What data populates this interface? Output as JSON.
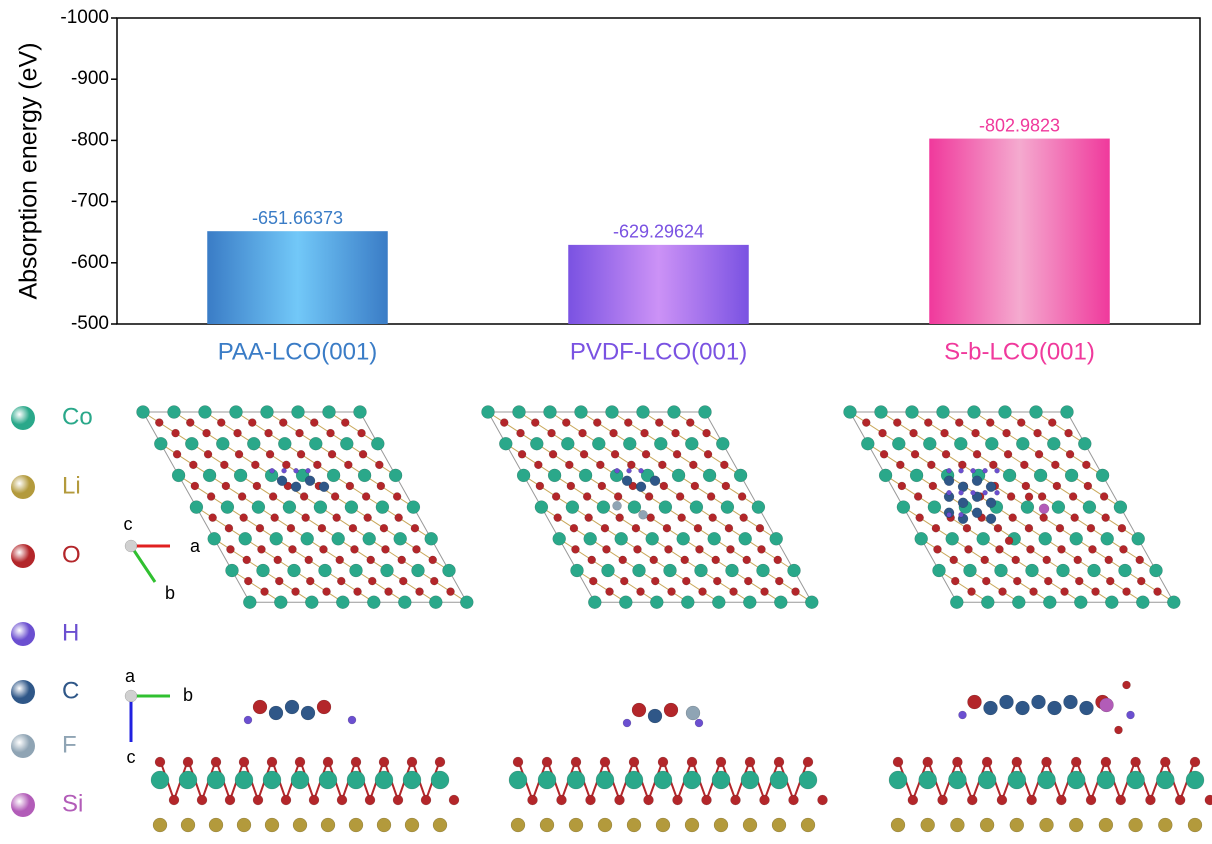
{
  "chart_data": {
    "type": "bar",
    "y_label": "Absorption energy (eV)",
    "categories": [
      "PAA-LCO(001)",
      "PVDF-LCO(001)",
      "S-b-LCO(001)"
    ],
    "values": [
      -651.66373,
      -629.29624,
      -802.9823
    ],
    "colors": [
      "#3a7cc6",
      "#7a52e2",
      "#f0399c"
    ],
    "highlight_colors": [
      "#72c8f8",
      "#cc92f6",
      "#f4aacf"
    ],
    "ylim": [
      -500,
      -1000
    ],
    "yticks": [
      -500,
      -600,
      -700,
      -800,
      -900,
      -1000
    ]
  },
  "atom_legend": [
    {
      "label": "Co",
      "color": "#2aa88a"
    },
    {
      "label": "Li",
      "color": "#b39a3c"
    },
    {
      "label": "O",
      "color": "#b3262a"
    },
    {
      "label": "H",
      "color": "#6b4fd0"
    },
    {
      "label": "C",
      "color": "#2f5788"
    },
    {
      "label": "F",
      "color": "#8fa4b4"
    },
    {
      "label": "Si",
      "color": "#b25cb8"
    }
  ],
  "top_view_axes": [
    "c",
    "a",
    "b"
  ],
  "side_view_axes": [
    "a",
    "b",
    "c"
  ]
}
